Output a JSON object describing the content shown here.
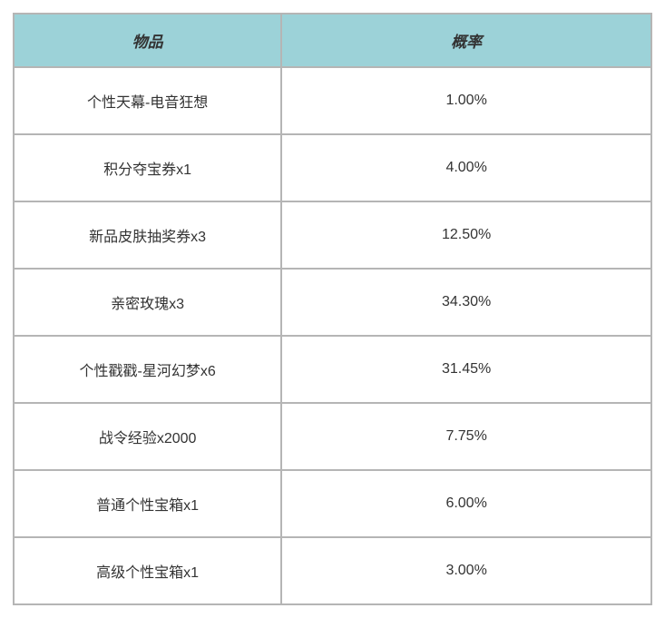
{
  "table": {
    "columns": [
      {
        "key": "item",
        "label": "物品"
      },
      {
        "key": "rate",
        "label": "概率"
      }
    ],
    "rows": [
      {
        "item": "个性天幕-电音狂想",
        "rate": "1.00%"
      },
      {
        "item": "积分夺宝券x1",
        "rate": "4.00%"
      },
      {
        "item": "新品皮肤抽奖券x3",
        "rate": "12.50%"
      },
      {
        "item": "亲密玫瑰x3",
        "rate": "34.30%"
      },
      {
        "item": "个性戳戳-星河幻梦x6",
        "rate": "31.45%"
      },
      {
        "item": "战令经验x2000",
        "rate": "7.75%"
      },
      {
        "item": "普通个性宝箱x1",
        "rate": "6.00%"
      },
      {
        "item": "高级个性宝箱x1",
        "rate": "3.00%"
      }
    ],
    "header_bg_color": "#9cd2d8",
    "border_color": "#b5b5b5",
    "text_color": "#333333",
    "header_fontsize": 17,
    "cell_fontsize": 16
  }
}
